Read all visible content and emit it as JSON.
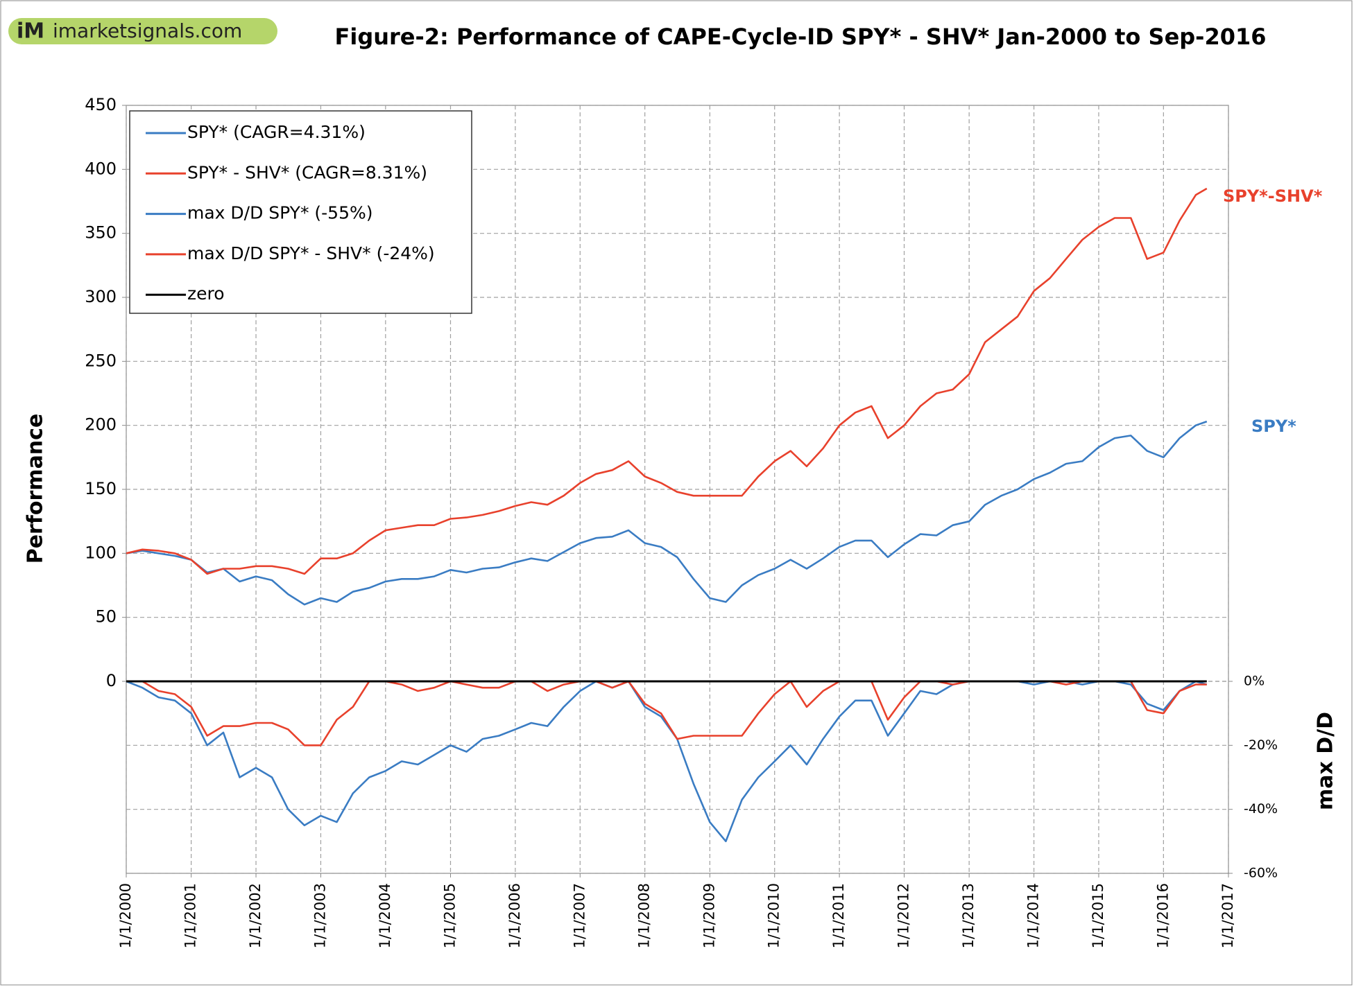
{
  "brand": {
    "badge": "iM",
    "site": "imarketsignals.com"
  },
  "chart_data": {
    "type": "line",
    "title": "Figure-2:  Performance of CAPE-Cycle-ID  SPY* - SHV*   Jan-2000 to Sep-2016",
    "ylabel": "Performance",
    "y2label": "max D/D",
    "x": [
      "2000-01-01",
      "2000-04-01",
      "2000-07-01",
      "2000-10-01",
      "2001-01-01",
      "2001-04-01",
      "2001-07-01",
      "2001-10-01",
      "2002-01-01",
      "2002-04-01",
      "2002-07-01",
      "2002-10-01",
      "2003-01-01",
      "2003-04-01",
      "2003-07-01",
      "2003-10-01",
      "2004-01-01",
      "2004-04-01",
      "2004-07-01",
      "2004-10-01",
      "2005-01-01",
      "2005-04-01",
      "2005-07-01",
      "2005-10-01",
      "2006-01-01",
      "2006-04-01",
      "2006-07-01",
      "2006-10-01",
      "2007-01-01",
      "2007-04-01",
      "2007-07-01",
      "2007-10-01",
      "2008-01-01",
      "2008-04-01",
      "2008-07-01",
      "2008-10-01",
      "2009-01-01",
      "2009-04-01",
      "2009-07-01",
      "2009-10-01",
      "2010-01-01",
      "2010-04-01",
      "2010-07-01",
      "2010-10-01",
      "2011-01-01",
      "2011-04-01",
      "2011-07-01",
      "2011-10-01",
      "2012-01-01",
      "2012-04-01",
      "2012-07-01",
      "2012-10-01",
      "2013-01-01",
      "2013-04-01",
      "2013-07-01",
      "2013-10-01",
      "2014-01-01",
      "2014-04-01",
      "2014-07-01",
      "2014-10-01",
      "2015-01-01",
      "2015-04-01",
      "2015-07-01",
      "2015-10-01",
      "2016-01-01",
      "2016-04-01",
      "2016-07-01",
      "2016-09-01"
    ],
    "series": [
      {
        "name": "SPY* (CAGR=4.31%)",
        "color": "#3a7cc3",
        "values": [
          100,
          102,
          100,
          98,
          95,
          85,
          88,
          78,
          82,
          79,
          68,
          60,
          65,
          62,
          70,
          73,
          78,
          80,
          80,
          82,
          87,
          85,
          88,
          89,
          93,
          96,
          94,
          101,
          108,
          112,
          113,
          118,
          108,
          105,
          97,
          80,
          65,
          62,
          75,
          83,
          88,
          95,
          88,
          96,
          105,
          110,
          110,
          97,
          107,
          115,
          114,
          122,
          125,
          138,
          145,
          150,
          158,
          163,
          170,
          172,
          183,
          190,
          192,
          180,
          175,
          190,
          200,
          203
        ]
      },
      {
        "name": "SPY* -  SHV* (CAGR=8.31%)",
        "color": "#e8412c",
        "values": [
          100,
          103,
          102,
          100,
          95,
          84,
          88,
          88,
          90,
          90,
          88,
          84,
          96,
          96,
          100,
          110,
          118,
          120,
          122,
          122,
          127,
          128,
          130,
          133,
          137,
          140,
          138,
          145,
          155,
          162,
          165,
          172,
          160,
          155,
          148,
          145,
          145,
          145,
          145,
          160,
          172,
          180,
          168,
          182,
          200,
          210,
          215,
          190,
          200,
          215,
          225,
          228,
          240,
          265,
          275,
          285,
          305,
          315,
          330,
          345,
          355,
          362,
          362,
          330,
          335,
          360,
          380,
          385
        ]
      },
      {
        "name": "max D/D  SPY* (-55%)",
        "color": "#3a7cc3",
        "axis": "y2",
        "values": [
          0,
          -2,
          -5,
          -6,
          -10,
          -20,
          -16,
          -30,
          -27,
          -30,
          -40,
          -45,
          -42,
          -44,
          -35,
          -30,
          -28,
          -25,
          -26,
          -23,
          -20,
          -22,
          -18,
          -17,
          -15,
          -13,
          -14,
          -8,
          -3,
          0,
          -2,
          0,
          -8,
          -11,
          -18,
          -32,
          -44,
          -50,
          -37,
          -30,
          -25,
          -20,
          -26,
          -18,
          -11,
          -6,
          -6,
          -17,
          -10,
          -3,
          -4,
          -1,
          0,
          0,
          0,
          0,
          -1,
          0,
          0,
          -1,
          0,
          0,
          -1,
          -7,
          -9,
          -3,
          0,
          -1
        ]
      },
      {
        "name": "max D/D  SPY* - SHV* (-24%)",
        "color": "#e8412c",
        "axis": "y2",
        "values": [
          0,
          0,
          -3,
          -4,
          -8,
          -17,
          -14,
          -14,
          -13,
          -13,
          -15,
          -20,
          -20,
          -12,
          -8,
          0,
          0,
          -1,
          -3,
          -2,
          0,
          -1,
          -2,
          -2,
          0,
          0,
          -3,
          -1,
          0,
          0,
          -2,
          0,
          -7,
          -10,
          -18,
          -17,
          -17,
          -17,
          -17,
          -10,
          -4,
          0,
          -8,
          -3,
          0,
          0,
          0,
          -12,
          -5,
          0,
          0,
          -1,
          0,
          0,
          0,
          0,
          0,
          0,
          -1,
          0,
          0,
          0,
          0,
          -9,
          -10,
          -3,
          -1,
          -1
        ]
      },
      {
        "name": "zero",
        "color": "#000000",
        "values": [
          0,
          0,
          0,
          0,
          0,
          0,
          0,
          0,
          0,
          0,
          0,
          0,
          0,
          0,
          0,
          0,
          0,
          0,
          0,
          0,
          0,
          0,
          0,
          0,
          0,
          0,
          0,
          0,
          0,
          0,
          0,
          0,
          0,
          0,
          0,
          0,
          0,
          0,
          0,
          0,
          0,
          0,
          0,
          0,
          0,
          0,
          0,
          0,
          0,
          0,
          0,
          0,
          0,
          0,
          0,
          0,
          0,
          0,
          0,
          0,
          0,
          0,
          0,
          0,
          0,
          0,
          0,
          0
        ]
      }
    ],
    "xlim": [
      "2000-01-01",
      "2017-01-01"
    ],
    "xticks": [
      {
        "value": "2000-01-01",
        "label": "1/1/2000"
      },
      {
        "value": "2001-01-01",
        "label": "1/1/2001"
      },
      {
        "value": "2002-01-01",
        "label": "1/1/2002"
      },
      {
        "value": "2003-01-01",
        "label": "1/1/2003"
      },
      {
        "value": "2004-01-01",
        "label": "1/1/2004"
      },
      {
        "value": "2005-01-01",
        "label": "1/1/2005"
      },
      {
        "value": "2006-01-01",
        "label": "1/1/2006"
      },
      {
        "value": "2007-01-01",
        "label": "1/1/2007"
      },
      {
        "value": "2008-01-01",
        "label": "1/1/2008"
      },
      {
        "value": "2009-01-01",
        "label": "1/1/2009"
      },
      {
        "value": "2010-01-01",
        "label": "1/1/2010"
      },
      {
        "value": "2011-01-01",
        "label": "1/1/2011"
      },
      {
        "value": "2012-01-01",
        "label": "1/1/2012"
      },
      {
        "value": "2013-01-01",
        "label": "1/1/2013"
      },
      {
        "value": "2014-01-01",
        "label": "1/1/2014"
      },
      {
        "value": "2015-01-01",
        "label": "1/1/2015"
      },
      {
        "value": "2016-01-01",
        "label": "1/1/2016"
      },
      {
        "value": "2017-01-01",
        "label": "1/1/2017"
      }
    ],
    "ylim": [
      -150,
      450
    ],
    "yticks": [
      0,
      50,
      100,
      150,
      200,
      250,
      300,
      350,
      400,
      450
    ],
    "y2lim": [
      -60,
      180
    ],
    "y2ticks": [
      {
        "value": 0,
        "label": "0%"
      },
      {
        "value": -20,
        "label": "-20%"
      },
      {
        "value": -40,
        "label": "-40%"
      },
      {
        "value": -60,
        "label": "-60%"
      }
    ],
    "grid": true,
    "annotations": [
      {
        "text": "SPY*-SHV*",
        "color": "#e8412c"
      },
      {
        "text": "SPY*",
        "color": "#3a7cc3"
      }
    ]
  }
}
